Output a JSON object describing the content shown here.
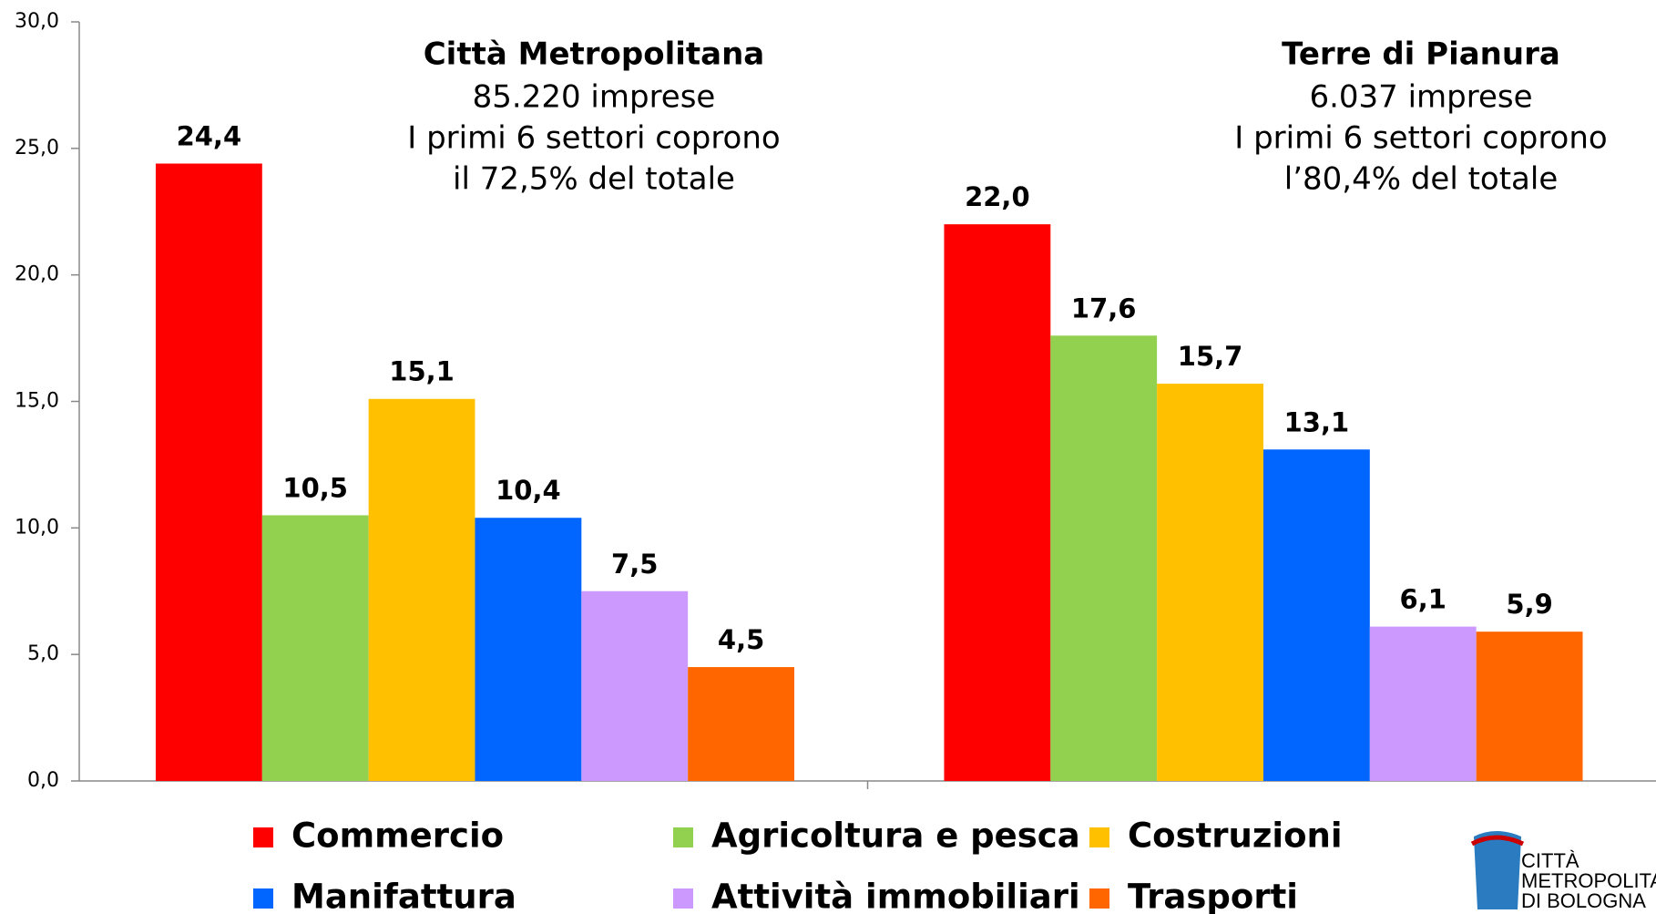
{
  "chart_data": {
    "type": "bar",
    "categories": [
      null,
      null
    ],
    "series": [
      {
        "name": "Commercio",
        "color": "#ff0000",
        "values": [
          24.4,
          22.0
        ],
        "value_labels": [
          "24,4",
          "22,0"
        ]
      },
      {
        "name": "Agricoltura e pesca",
        "color": "#92d050",
        "values": [
          10.5,
          17.6
        ],
        "value_labels": [
          "10,5",
          "17,6"
        ]
      },
      {
        "name": "Costruzioni",
        "color": "#ffc000",
        "values": [
          15.1,
          15.7
        ],
        "value_labels": [
          "15,1",
          "15,7"
        ]
      },
      {
        "name": "Manifattura",
        "color": "#0066ff",
        "values": [
          10.4,
          13.1
        ],
        "value_labels": [
          "10,4",
          "13,1"
        ]
      },
      {
        "name": "Attività immobiliari",
        "color": "#cc99ff",
        "values": [
          7.5,
          6.1
        ],
        "value_labels": [
          "7,5",
          "6,1"
        ]
      },
      {
        "name": "Trasporti",
        "color": "#ff6600",
        "values": [
          4.5,
          5.9
        ],
        "value_labels": [
          "4,5",
          "5,9"
        ]
      }
    ],
    "ylim": [
      0,
      30
    ],
    "yticks": [
      {
        "value": 0,
        "label": "0,0"
      },
      {
        "value": 5,
        "label": "5,0"
      },
      {
        "value": 10,
        "label": "10,0"
      },
      {
        "value": 15,
        "label": "15,0"
      },
      {
        "value": 20,
        "label": "20,0"
      },
      {
        "value": 25,
        "label": "25,0"
      },
      {
        "value": 30,
        "label": "30,0"
      }
    ],
    "annotations": [
      {
        "title": "Città Metropolitana",
        "lines": [
          "85.220 imprese",
          "I primi 6 settori coprono",
          "il 72,5% del totale"
        ]
      },
      {
        "title": "Terre di Pianura",
        "lines": [
          "6.037 imprese",
          "I primi 6 settori coprono",
          "l’80,4% del totale"
        ]
      }
    ],
    "logo": [
      "CITTÀ",
      "METROPOLITANA",
      "DI BOLOGNA"
    ]
  }
}
